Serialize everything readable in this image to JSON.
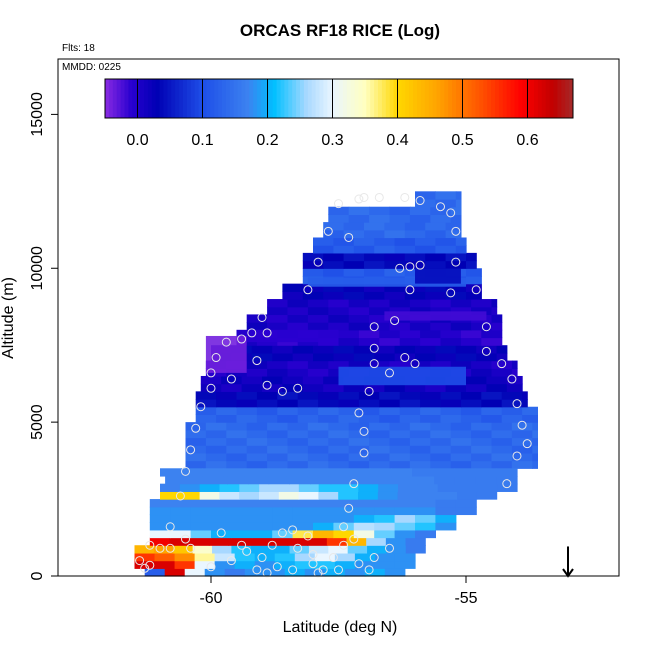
{
  "chart_data": {
    "type": "heatmap",
    "title": "ORCAS RF18 RICE (Log)",
    "subtitle_flights": "Flts: 18",
    "subtitle_date": "MMDD: 0225",
    "xlabel": "Latitude (deg N)",
    "ylabel": "Altitude (m)",
    "xlim": [
      -63.0,
      -52.0
    ],
    "ylim": [
      0,
      16800
    ],
    "x_ticks": [
      {
        "value": -60,
        "label": "-60"
      },
      {
        "value": -55,
        "label": "-55"
      }
    ],
    "y_ticks": [
      {
        "value": 0,
        "label": "0"
      },
      {
        "value": 5000,
        "label": "5000"
      },
      {
        "value": 10000,
        "label": "10000"
      },
      {
        "value": 15000,
        "label": "15000"
      }
    ],
    "colorbar": {
      "range": [
        -0.05,
        0.67
      ],
      "tick_values": [
        0.0,
        0.1,
        0.2,
        0.3,
        0.4,
        0.5,
        0.6
      ],
      "tick_labels": [
        "0.0",
        "0.1",
        "0.2",
        "0.3",
        "0.4",
        "0.5",
        "0.6"
      ],
      "color_stops": [
        {
          "value": -0.05,
          "color": "#8a2be2"
        },
        {
          "value": -0.01,
          "color": "#2a00d0"
        },
        {
          "value": 0.03,
          "color": "#0000b4"
        },
        {
          "value": 0.1,
          "color": "#1e4ee8"
        },
        {
          "value": 0.17,
          "color": "#3c82f0"
        },
        {
          "value": 0.21,
          "color": "#00bfff"
        },
        {
          "value": 0.26,
          "color": "#a8d8ff"
        },
        {
          "value": 0.3,
          "color": "#eaf6ff"
        },
        {
          "value": 0.35,
          "color": "#ffffc0"
        },
        {
          "value": 0.4,
          "color": "#ffd700"
        },
        {
          "value": 0.46,
          "color": "#ffa500"
        },
        {
          "value": 0.53,
          "color": "#ff5000"
        },
        {
          "value": 0.59,
          "color": "#ff0000"
        },
        {
          "value": 0.64,
          "color": "#c00000"
        },
        {
          "value": 0.67,
          "color": "#a52a2a"
        }
      ]
    },
    "lat_bins": [
      -61.1,
      -60.7,
      -60.3,
      -59.9,
      -59.5,
      -59.1,
      -58.7,
      -58.3,
      -57.9,
      -57.5,
      -57.1,
      -56.7,
      -56.3,
      -55.9,
      -55.5,
      -55.1,
      -54.7,
      -54.3
    ],
    "layers": [
      {
        "alt": [
          0,
          250
        ],
        "lat": [
          -61.3,
          -56.2
        ],
        "values": [
          0.12,
          0.62,
          0.3,
          0.18,
          0.16,
          0.18,
          0.18,
          0.2,
          0.18,
          0.2,
          0.18,
          0.2,
          0.18
        ]
      },
      {
        "alt": [
          250,
          500
        ],
        "lat": [
          -61.5,
          -56.0
        ],
        "values": [
          0.62,
          0.62,
          0.55,
          0.3,
          0.18,
          0.2,
          0.18,
          0.2,
          0.22,
          0.22,
          0.2,
          0.18,
          0.18,
          0.18
        ]
      },
      {
        "alt": [
          500,
          750
        ],
        "lat": [
          -61.5,
          -56.0
        ],
        "values": [
          0.55,
          0.52,
          0.48,
          0.36,
          0.28,
          0.22,
          0.2,
          0.22,
          0.26,
          0.3,
          0.26,
          0.2,
          0.18,
          0.18
        ]
      },
      {
        "alt": [
          750,
          1000
        ],
        "lat": [
          -61.5,
          -55.8
        ],
        "values": [
          0.44,
          0.46,
          0.42,
          0.34,
          0.26,
          0.22,
          0.2,
          0.2,
          0.24,
          0.28,
          0.3,
          0.24,
          0.2,
          0.18,
          0.16
        ]
      },
      {
        "alt": [
          1000,
          1250
        ],
        "lat": [
          -61.2,
          -55.8
        ],
        "values": [
          0.6,
          0.62,
          0.62,
          0.62,
          0.62,
          0.62,
          0.62,
          0.62,
          0.62,
          0.55,
          0.44,
          0.26,
          0.18,
          0.16
        ]
      },
      {
        "alt": [
          1250,
          1500
        ],
        "lat": [
          -61.2,
          -55.6
        ],
        "values": [
          0.3,
          0.3,
          0.24,
          0.2,
          0.2,
          0.2,
          0.24,
          0.38,
          0.44,
          0.4,
          0.32,
          0.24,
          0.18,
          0.16
        ]
      },
      {
        "alt": [
          1500,
          1750
        ],
        "lat": [
          -61.2,
          -55.2
        ],
        "values": [
          0.18,
          0.18,
          0.18,
          0.18,
          0.18,
          0.18,
          0.18,
          0.18,
          0.2,
          0.24,
          0.27,
          0.26,
          0.24,
          0.22,
          0.18
        ]
      },
      {
        "alt": [
          1750,
          2000
        ],
        "lat": [
          -61.2,
          -55.2
        ],
        "values": [
          0.18,
          0.18,
          0.18,
          0.18,
          0.18,
          0.18,
          0.18,
          0.18,
          0.18,
          0.18,
          0.2,
          0.22,
          0.26,
          0.24,
          0.2
        ]
      },
      {
        "alt": [
          2000,
          2250
        ],
        "lat": [
          -61.2,
          -54.8
        ],
        "values": [
          0.18,
          0.18,
          0.18,
          0.18,
          0.18,
          0.18,
          0.18,
          0.18,
          0.18,
          0.18,
          0.18,
          0.18,
          0.18,
          0.18,
          0.16,
          0.16
        ]
      },
      {
        "alt": [
          2250,
          2500
        ],
        "lat": [
          -61.2,
          -54.8
        ],
        "values": [
          0.17,
          0.17,
          0.17,
          0.17,
          0.17,
          0.17,
          0.17,
          0.17,
          0.17,
          0.17,
          0.17,
          0.17,
          0.17,
          0.17,
          0.16,
          0.16
        ]
      },
      {
        "alt": [
          2500,
          2750
        ],
        "lat": [
          -61.0,
          -54.4
        ],
        "values": [
          0.4,
          0.4,
          0.32,
          0.28,
          0.26,
          0.28,
          0.32,
          0.3,
          0.26,
          0.22,
          0.2,
          0.18,
          0.17,
          0.17,
          0.17,
          0.16,
          0.16
        ]
      },
      {
        "alt": [
          2750,
          3000
        ],
        "lat": [
          -61.0,
          -54.0
        ],
        "values": [
          0.17,
          0.18,
          0.2,
          0.22,
          0.24,
          0.26,
          0.26,
          0.24,
          0.22,
          0.22,
          0.2,
          0.18,
          0.17,
          0.17,
          0.16,
          0.16,
          0.16,
          0.16
        ]
      },
      {
        "alt": [
          3000,
          3250
        ],
        "lat": [
          -60.9,
          -54.0
        ],
        "values": [
          0.17,
          0.17,
          0.17,
          0.17,
          0.17,
          0.17,
          0.17,
          0.17,
          0.17,
          0.17,
          0.17,
          0.17,
          0.17,
          0.16,
          0.16,
          0.16,
          0.16
        ]
      },
      {
        "alt": [
          3250,
          3500
        ],
        "lat": [
          -61.0,
          -54.0
        ],
        "values": [
          0.17,
          0.17,
          0.17,
          0.17,
          0.17,
          0.17,
          0.17,
          0.17,
          0.17,
          0.17,
          0.17,
          0.17,
          0.16,
          0.16,
          0.16,
          0.16,
          0.16
        ]
      }
    ],
    "upper_rows": [
      {
        "alt": [
          3500,
          4000
        ],
        "lat": [
          -60.5,
          -53.6
        ],
        "value": 0.16
      },
      {
        "alt": [
          4000,
          4500
        ],
        "lat": [
          -60.5,
          -53.6
        ],
        "value": 0.16
      },
      {
        "alt": [
          4500,
          5000
        ],
        "lat": [
          -60.5,
          -53.6
        ],
        "value": 0.16
      },
      {
        "alt": [
          5000,
          5500
        ],
        "lat": [
          -60.3,
          -53.6
        ],
        "value": 0.15
      },
      {
        "alt": [
          5500,
          6000
        ],
        "lat": [
          -60.3,
          -53.8
        ],
        "value": 0.06
      },
      {
        "alt": [
          6000,
          6500
        ],
        "lat": [
          -60.2,
          -53.9
        ],
        "value": 0.04
      },
      {
        "alt": [
          6500,
          7000
        ],
        "lat": [
          -60.1,
          -54.0
        ],
        "value": 0.03
      },
      {
        "alt": [
          7000,
          7500
        ],
        "lat": [
          -60.0,
          -54.2
        ],
        "value": 0.05
      },
      {
        "alt": [
          7500,
          8000
        ],
        "lat": [
          -59.5,
          -54.3
        ],
        "value": 0.02
      },
      {
        "alt": [
          8000,
          8500
        ],
        "lat": [
          -59.3,
          -54.3
        ],
        "value": 0.03
      },
      {
        "alt": [
          8500,
          9000
        ],
        "lat": [
          -58.9,
          -54.4
        ],
        "value": 0.03
      },
      {
        "alt": [
          9000,
          9500
        ],
        "lat": [
          -58.6,
          -54.7
        ],
        "value": 0.05
      },
      {
        "alt": [
          9500,
          10000
        ],
        "lat": [
          -58.2,
          -54.7
        ],
        "value": 0.14
      },
      {
        "alt": [
          10000,
          10500
        ],
        "lat": [
          -58.2,
          -54.8
        ],
        "value": 0.06
      },
      {
        "alt": [
          10500,
          11000
        ],
        "lat": [
          -58.0,
          -55.0
        ],
        "value": 0.14
      },
      {
        "alt": [
          11000,
          11500
        ],
        "lat": [
          -57.8,
          -55.1
        ],
        "value": 0.16
      },
      {
        "alt": [
          11500,
          12000
        ],
        "lat": [
          -57.7,
          -55.1
        ],
        "value": 0.16
      },
      {
        "alt": [
          12000,
          12500
        ],
        "lat": [
          -56.0,
          -55.1
        ],
        "value": 0.16
      }
    ],
    "overrides": [
      {
        "alt": [
          6600,
          7800
        ],
        "lat": [
          -60.1,
          -59.3
        ],
        "value": -0.04
      },
      {
        "alt": [
          7600,
          8000
        ],
        "lat": [
          -59.3,
          -57.5
        ],
        "value": -0.01
      },
      {
        "alt": [
          8300,
          8600
        ],
        "lat": [
          -56.6,
          -54.6
        ],
        "value": -0.02
      },
      {
        "alt": [
          6200,
          6800
        ],
        "lat": [
          -57.5,
          -55.0
        ],
        "value": 0.1
      },
      {
        "alt": [
          9400,
          9700
        ],
        "lat": [
          -58.1,
          -55.0
        ],
        "value": 0.12
      },
      {
        "alt": [
          9500,
          10000
        ],
        "lat": [
          -56.0,
          -55.1
        ],
        "value": 0.04
      }
    ],
    "flight_points": [
      [
        -61.2,
        350
      ],
      [
        -61.0,
        900
      ],
      [
        -60.8,
        1600
      ],
      [
        -60.6,
        2600
      ],
      [
        -60.5,
        3400
      ],
      [
        -60.4,
        4100
      ],
      [
        -60.3,
        4800
      ],
      [
        -60.2,
        5500
      ],
      [
        -60.0,
        6100
      ],
      [
        -60.0,
        6600
      ],
      [
        -59.9,
        7100
      ],
      [
        -59.7,
        7600
      ],
      [
        -59.4,
        7700
      ],
      [
        -59.1,
        7000
      ],
      [
        -58.9,
        6200
      ],
      [
        -58.6,
        6000
      ],
      [
        -58.3,
        6100
      ],
      [
        -58.1,
        9300
      ],
      [
        -57.9,
        10200
      ],
      [
        -57.7,
        11200
      ],
      [
        -57.5,
        12100
      ],
      [
        -57.1,
        12250
      ],
      [
        -56.7,
        12300
      ],
      [
        -56.2,
        12300
      ],
      [
        -55.9,
        12200
      ],
      [
        -55.5,
        12000
      ],
      [
        -55.3,
        11800
      ],
      [
        -55.2,
        11200
      ],
      [
        -55.2,
        10200
      ],
      [
        -55.3,
        9200
      ],
      [
        -54.8,
        9300
      ],
      [
        -54.6,
        8100
      ],
      [
        -54.6,
        7300
      ],
      [
        -54.3,
        6900
      ],
      [
        -54.1,
        6400
      ],
      [
        -54.0,
        5600
      ],
      [
        -53.9,
        4900
      ],
      [
        -53.8,
        4300
      ],
      [
        -54.0,
        3900
      ],
      [
        -54.2,
        3000
      ],
      [
        -55.9,
        10100
      ],
      [
        -56.1,
        10050
      ],
      [
        -56.3,
        10000
      ],
      [
        -56.1,
        9300
      ],
      [
        -56.4,
        8300
      ],
      [
        -56.2,
        7100
      ],
      [
        -56.0,
        6900
      ],
      [
        -56.5,
        6600
      ],
      [
        -56.8,
        8100
      ],
      [
        -56.8,
        7400
      ],
      [
        -56.8,
        6900
      ],
      [
        -56.9,
        6000
      ],
      [
        -57.1,
        5300
      ],
      [
        -57.0,
        4700
      ],
      [
        -57.0,
        4000
      ],
      [
        -57.2,
        3000
      ],
      [
        -57.3,
        2200
      ],
      [
        -57.4,
        1000
      ],
      [
        -57.6,
        600
      ],
      [
        -58.0,
        400
      ],
      [
        -58.4,
        200
      ],
      [
        -58.7,
        300
      ],
      [
        -59.0,
        600
      ],
      [
        -59.3,
        800
      ],
      [
        -59.6,
        500
      ],
      [
        -60.0,
        300
      ],
      [
        -60.4,
        900
      ],
      [
        -60.8,
        900
      ],
      [
        -61.2,
        1000
      ],
      [
        -61.4,
        500
      ],
      [
        -61.3,
        250
      ],
      [
        -59.8,
        1400
      ],
      [
        -59.4,
        1000
      ],
      [
        -58.8,
        1000
      ],
      [
        -58.4,
        1500
      ],
      [
        -58.1,
        1300
      ],
      [
        -58.0,
        700
      ],
      [
        -57.8,
        200
      ],
      [
        -57.5,
        200
      ],
      [
        -57.1,
        400
      ],
      [
        -56.9,
        200
      ],
      [
        -56.8,
        600
      ],
      [
        -56.5,
        900
      ],
      [
        -58.9,
        100
      ],
      [
        -58.6,
        1400
      ],
      [
        -58.3,
        900
      ],
      [
        -57.9,
        100
      ],
      [
        -57.2,
        1200
      ],
      [
        -57.4,
        1600
      ],
      [
        -59.1,
        200
      ],
      [
        -60.5,
        1200
      ],
      [
        -59.6,
        6400
      ],
      [
        -59.2,
        7900
      ],
      [
        -58.9,
        7900
      ],
      [
        -59.0,
        8400
      ],
      [
        -57.3,
        11000
      ],
      [
        -57.0,
        12300
      ]
    ],
    "annotations": [
      {
        "type": "arrow",
        "lat": -53.0,
        "alt_from": 700,
        "alt_to": 0,
        "direction": "down"
      }
    ]
  }
}
